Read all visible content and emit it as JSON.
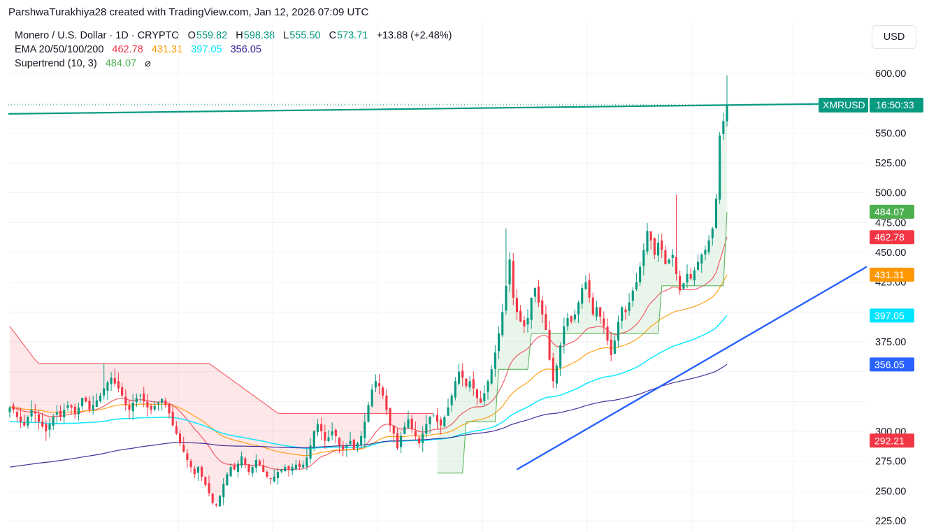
{
  "header": {
    "credit": "ParshwaTurakhiya28 created with TradingView.com, Jan 12, 2026 07:09 UTC"
  },
  "legend": {
    "symbol": "Monero / U.S. Dollar · 1D · CRYPTO",
    "ohlc": {
      "o_key": "O",
      "o": "559.82",
      "h_key": "H",
      "h": "598.38",
      "l_key": "L",
      "l": "555.50",
      "c_key": "C",
      "c": "573.71",
      "change": "+13.88 (+2.48%)"
    },
    "ema_label": "EMA 20/50/100/200",
    "ema_values": [
      "462.78",
      "431.31",
      "397.05",
      "356.05"
    ],
    "supertrend_label": "Supertrend (10, 3)",
    "supertrend_value": "484.07",
    "eye_icon": "visibility-off-icon"
  },
  "currency_button": "USD",
  "colors": {
    "up": "#089981",
    "down": "#f23645",
    "ema20": "#f23645",
    "ema50": "#ff9800",
    "ema100": "#00e5ff",
    "ema200": "#311b92",
    "supertrend_up": "#4caf50",
    "supertrend_down": "#f23645",
    "trendline": "#2962ff",
    "resistance": "#089981"
  },
  "chart_data": {
    "type": "candlestick",
    "symbol": "XMRUSD",
    "timeframe": "1D",
    "ylim": [
      215,
      615
    ],
    "yticks": [
      225,
      250,
      275,
      300,
      325,
      350,
      375,
      400,
      425,
      450,
      475,
      500,
      525,
      550,
      575,
      600
    ],
    "ytick_labels": [
      "225.00",
      "250.00",
      "275.00",
      "300.00",
      "",
      "",
      "375.00",
      "",
      "425.00",
      "450.00",
      "475.00",
      "500.00",
      "525.00",
      "550.00",
      "",
      "600.00"
    ],
    "closes": [
      320,
      318,
      312,
      308,
      305,
      312,
      318,
      315,
      308,
      304,
      300,
      306,
      312,
      316,
      312,
      318,
      322,
      320,
      315,
      320,
      328,
      325,
      318,
      322,
      326,
      330,
      336,
      341,
      345,
      340,
      336,
      330,
      322,
      318,
      324,
      328,
      330,
      325,
      320,
      318,
      321,
      324,
      327,
      322,
      315,
      305,
      298,
      290,
      283,
      276,
      270,
      264,
      270,
      262,
      255,
      248,
      240,
      238,
      246,
      256,
      264,
      270,
      268,
      273,
      279,
      272,
      266,
      270,
      276,
      272,
      266,
      262,
      260,
      262,
      266,
      268,
      270,
      268,
      270,
      272,
      270,
      272,
      278,
      288,
      300,
      306,
      300,
      292,
      295,
      300,
      296,
      288,
      285,
      288,
      292,
      285,
      290,
      296,
      308,
      322,
      335,
      342,
      338,
      330,
      318,
      305,
      298,
      286,
      296,
      304,
      310,
      302,
      296,
      290,
      298,
      306,
      312,
      314,
      308,
      305,
      312,
      320,
      330,
      342,
      350,
      345,
      338,
      342,
      336,
      328,
      324,
      332,
      342,
      352,
      366,
      382,
      400,
      422,
      444,
      412,
      400,
      392,
      388,
      395,
      412,
      420,
      408,
      398,
      385,
      360,
      342,
      355,
      372,
      388,
      395,
      392,
      398,
      408,
      420,
      425,
      412,
      398,
      404,
      396,
      388,
      376,
      364,
      376,
      392,
      404,
      400,
      408,
      418,
      425,
      438,
      452,
      468,
      460,
      448,
      458,
      452,
      440,
      444,
      448,
      432,
      418,
      424,
      432,
      428,
      435,
      442,
      448,
      452,
      460,
      470,
      495,
      548,
      560,
      573.71
    ],
    "ema20_last": 462.78,
    "ema50_last": 431.31,
    "ema100_last": 397.05,
    "ema200_last": 356.05,
    "supertrend_last": 484.07,
    "resistance_price": 573.71,
    "price_label_series": "XMRUSD",
    "countdown": "16:50:33",
    "axis_badges": [
      {
        "label": "484.07",
        "value": 484.07,
        "color": "#4caf50"
      },
      {
        "label": "462.78",
        "value": 462.78,
        "color": "#f23645"
      },
      {
        "label": "431.31",
        "value": 431.31,
        "color": "#ff9800"
      },
      {
        "label": "397.05",
        "value": 397.05,
        "color": "#00e5ff",
        "text_color": "#131722"
      },
      {
        "label": "356.05",
        "value": 356.05,
        "color": "#2962ff"
      },
      {
        "label": "292.21",
        "value": 292.21,
        "color": "#f23645"
      }
    ],
    "trendline": {
      "from_index": 140,
      "from_value": 268,
      "to_index": 230,
      "to_value": 438
    }
  }
}
